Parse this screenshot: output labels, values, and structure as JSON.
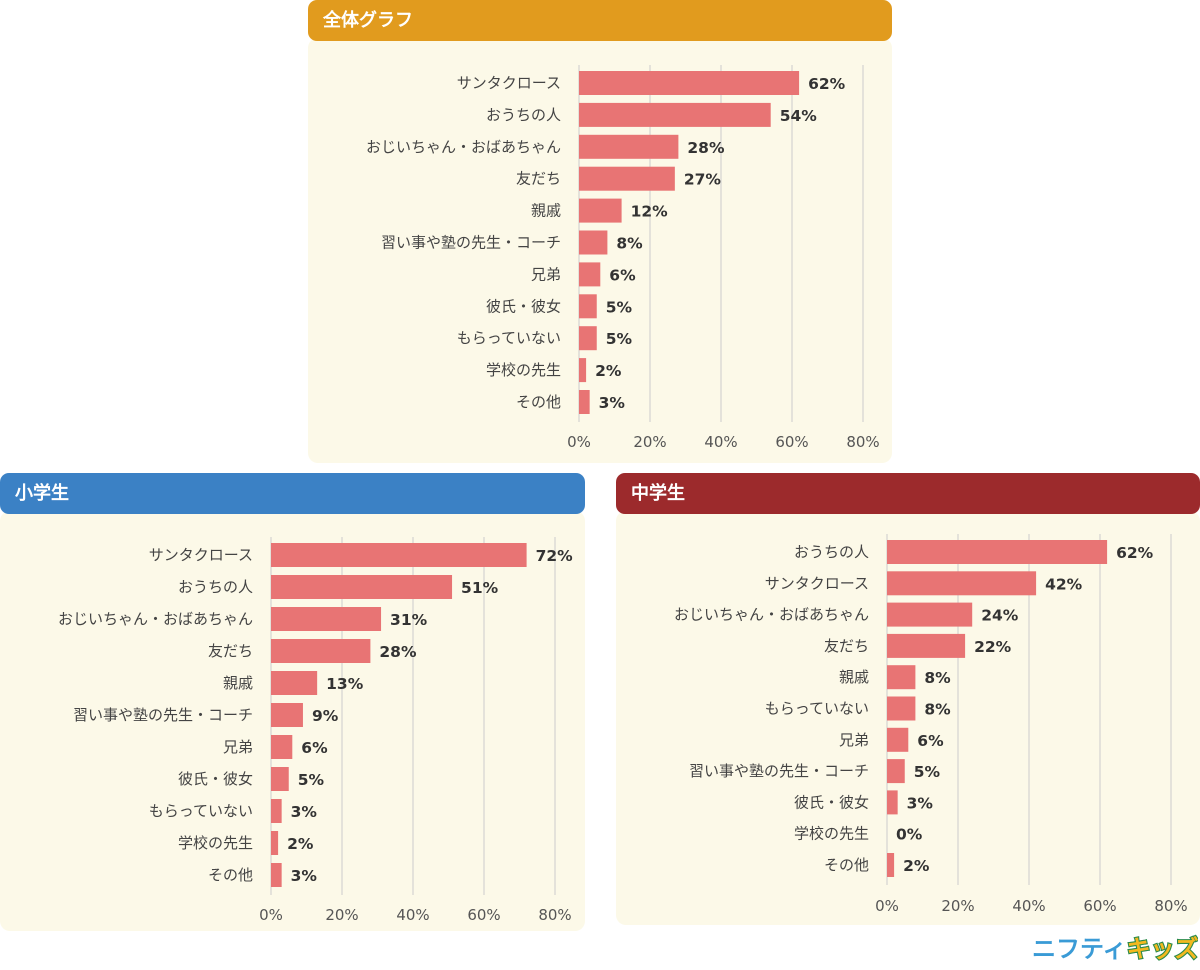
{
  "colors": {
    "bar": "#e87474",
    "grid": "#cccccc",
    "panel_bg": "#fcf9e8",
    "header_all": "#e19b1e",
    "header_elementary": "#3b81c5",
    "header_junior": "#9c2a2c"
  },
  "brand": {
    "logo_text": "ニフティキッズ"
  },
  "chart_data": [
    {
      "type": "bar",
      "orientation": "horizontal",
      "title": "全体グラフ",
      "categories": [
        "サンタクロース",
        "おうちの人",
        "おじいちゃん・おばあちゃん",
        "友だち",
        "親戚",
        "習い事や塾の先生・コーチ",
        "兄弟",
        "彼氏・彼女",
        "もらっていない",
        "学校の先生",
        "その他"
      ],
      "values": [
        62,
        54,
        28,
        27,
        12,
        8,
        6,
        5,
        5,
        2,
        3
      ],
      "value_labels": [
        "62%",
        "54%",
        "28%",
        "27%",
        "12%",
        "8%",
        "6%",
        "5%",
        "5%",
        "2%",
        "3%"
      ],
      "xlim": [
        0,
        80
      ],
      "ticks": [
        "0%",
        "20%",
        "40%",
        "60%",
        "80%"
      ],
      "grid": true
    },
    {
      "type": "bar",
      "orientation": "horizontal",
      "title": "小学生",
      "categories": [
        "サンタクロース",
        "おうちの人",
        "おじいちゃん・おばあちゃん",
        "友だち",
        "親戚",
        "習い事や塾の先生・コーチ",
        "兄弟",
        "彼氏・彼女",
        "もらっていない",
        "学校の先生",
        "その他"
      ],
      "values": [
        72,
        51,
        31,
        28,
        13,
        9,
        6,
        5,
        3,
        2,
        3
      ],
      "value_labels": [
        "72%",
        "51%",
        "31%",
        "28%",
        "13%",
        "9%",
        "6%",
        "5%",
        "3%",
        "2%",
        "3%"
      ],
      "xlim": [
        0,
        80
      ],
      "ticks": [
        "0%",
        "20%",
        "40%",
        "60%",
        "80%"
      ],
      "grid": true
    },
    {
      "type": "bar",
      "orientation": "horizontal",
      "title": "中学生",
      "categories": [
        "おうちの人",
        "サンタクロース",
        "おじいちゃん・おばあちゃん",
        "友だち",
        "親戚",
        "もらっていない",
        "兄弟",
        "習い事や塾の先生・コーチ",
        "彼氏・彼女",
        "学校の先生",
        "その他"
      ],
      "values": [
        62,
        42,
        24,
        22,
        8,
        8,
        6,
        5,
        3,
        0,
        2
      ],
      "value_labels": [
        "62%",
        "42%",
        "24%",
        "22%",
        "8%",
        "8%",
        "6%",
        "5%",
        "3%",
        "0%",
        "2%"
      ],
      "xlim": [
        0,
        80
      ],
      "ticks": [
        "0%",
        "20%",
        "40%",
        "60%",
        "80%"
      ],
      "grid": true
    }
  ]
}
